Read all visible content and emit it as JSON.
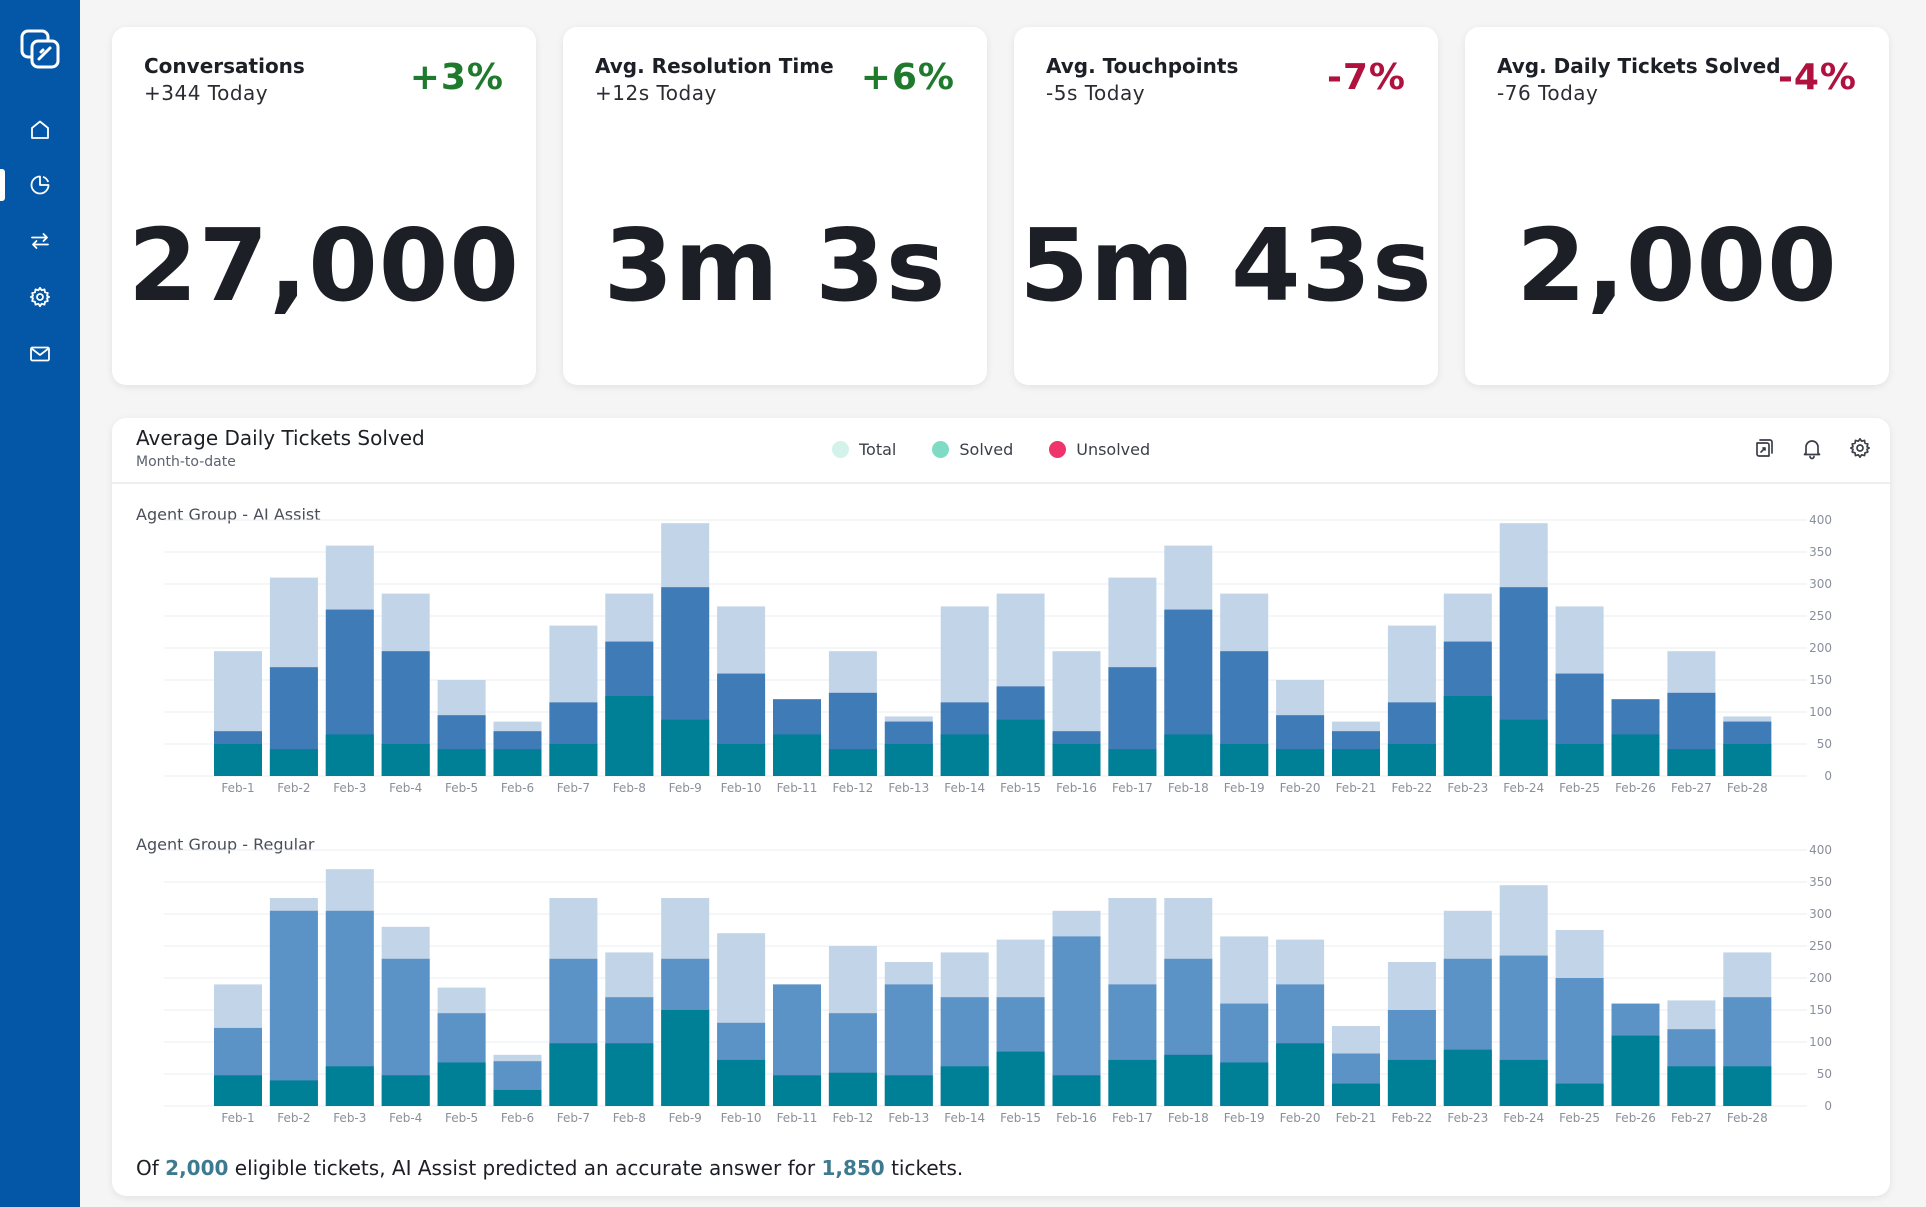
{
  "colors": {
    "sidebar": "#0456a6",
    "positive": "#1f7a2e",
    "negative": "#b0123f",
    "bar_total": "#c1d4e8",
    "bar_solved_ai": "#3f7bb6",
    "bar_solved_regular": "#5c93c6",
    "bar_unsolved": "#008097",
    "legend_total": "#d3f2ea",
    "legend_solved": "#7fdcc4",
    "legend_unsolved": "#f0336a"
  },
  "sidebar": {
    "items": [
      {
        "name": "home-icon"
      },
      {
        "name": "pie-chart-icon",
        "active": true
      },
      {
        "name": "transfer-arrows-icon"
      },
      {
        "name": "gear-icon"
      },
      {
        "name": "mail-icon"
      }
    ]
  },
  "kpis": [
    {
      "title": "Conversations",
      "sub": "+344 Today",
      "delta": "+3%",
      "trend": "positive",
      "value": "27,000"
    },
    {
      "title": "Avg. Resolution Time",
      "sub": "+12s Today",
      "delta": "+6%",
      "trend": "positive",
      "value": "3m 3s"
    },
    {
      "title": "Avg. Touchpoints",
      "sub": "-5s Today",
      "delta": "-7%",
      "trend": "negative",
      "value": "5m 43s"
    },
    {
      "title": "Avg. Daily Tickets Solved",
      "sub": "-76 Today",
      "delta": "-4%",
      "trend": "negative",
      "value": "2,000"
    }
  ],
  "panel": {
    "title": "Average Daily Tickets Solved",
    "subtitle": "Month-to-date",
    "legend": [
      "Total",
      "Solved",
      "Unsolved"
    ]
  },
  "chart_data": [
    {
      "type": "bar",
      "title": "Agent Group - AI Assist",
      "stacked": true,
      "categories": [
        "Feb-1",
        "Feb-2",
        "Feb-3",
        "Feb-4",
        "Feb-5",
        "Feb-6",
        "Feb-7",
        "Feb-8",
        "Feb-9",
        "Feb-10",
        "Feb-11",
        "Feb-12",
        "Feb-13",
        "Feb-14",
        "Feb-15",
        "Feb-16",
        "Feb-17",
        "Feb-18",
        "Feb-19",
        "Feb-20",
        "Feb-21",
        "Feb-22",
        "Feb-23",
        "Feb-24",
        "Feb-25",
        "Feb-26",
        "Feb-27",
        "Feb-28"
      ],
      "series": [
        {
          "name": "Total",
          "values": [
            195,
            310,
            360,
            285,
            150,
            85,
            235,
            285,
            395,
            265,
            120,
            195,
            93,
            265,
            285,
            195,
            310,
            360,
            285,
            150,
            85,
            235,
            285,
            395,
            265,
            120,
            195,
            93
          ]
        },
        {
          "name": "Solved",
          "values": [
            70,
            170,
            260,
            195,
            95,
            70,
            115,
            210,
            295,
            160,
            120,
            130,
            85,
            115,
            140,
            70,
            170,
            260,
            195,
            95,
            70,
            115,
            210,
            295,
            160,
            120,
            130,
            85
          ]
        },
        {
          "name": "Unsolved",
          "values": [
            50,
            42,
            65,
            50,
            42,
            42,
            50,
            125,
            88,
            50,
            65,
            42,
            50,
            65,
            88,
            50,
            42,
            65,
            50,
            42,
            42,
            50,
            125,
            88,
            50,
            65,
            42,
            50
          ]
        }
      ],
      "ylim": [
        0,
        400
      ],
      "yticks": [
        0,
        50,
        100,
        150,
        200,
        250,
        300,
        350,
        400
      ],
      "grid": true
    },
    {
      "type": "bar",
      "title": "Agent Group - Regular",
      "stacked": true,
      "categories": [
        "Feb-1",
        "Feb-2",
        "Feb-3",
        "Feb-4",
        "Feb-5",
        "Feb-6",
        "Feb-7",
        "Feb-8",
        "Feb-9",
        "Feb-10",
        "Feb-11",
        "Feb-12",
        "Feb-13",
        "Feb-14",
        "Feb-15",
        "Feb-16",
        "Feb-17",
        "Feb-18",
        "Feb-19",
        "Feb-20",
        "Feb-21",
        "Feb-22",
        "Feb-23",
        "Feb-24",
        "Feb-25",
        "Feb-26",
        "Feb-27",
        "Feb-28"
      ],
      "series": [
        {
          "name": "Total",
          "values": [
            190,
            325,
            370,
            280,
            185,
            80,
            325,
            240,
            325,
            270,
            190,
            250,
            225,
            240,
            260,
            305,
            325,
            325,
            265,
            260,
            125,
            225,
            305,
            345,
            275,
            160,
            165,
            240
          ]
        },
        {
          "name": "Solved",
          "values": [
            122,
            305,
            305,
            230,
            145,
            70,
            230,
            170,
            230,
            130,
            190,
            145,
            190,
            170,
            170,
            265,
            190,
            230,
            160,
            190,
            82,
            150,
            230,
            235,
            200,
            160,
            120,
            170
          ]
        },
        {
          "name": "Unsolved",
          "values": [
            48,
            40,
            62,
            48,
            68,
            25,
            98,
            98,
            150,
            72,
            48,
            52,
            48,
            62,
            85,
            48,
            72,
            80,
            68,
            98,
            35,
            72,
            88,
            72,
            35,
            110,
            62,
            62
          ]
        }
      ],
      "ylim": [
        0,
        400
      ],
      "yticks": [
        0,
        50,
        100,
        150,
        200,
        250,
        300,
        350,
        400
      ],
      "grid": true
    }
  ],
  "footer": {
    "prefix": "Of",
    "eligible": "2,000",
    "middle": "eligible tickets, AI Assist predicted an accurate answer for",
    "accurate": "1,850",
    "suffix": "tickets."
  }
}
